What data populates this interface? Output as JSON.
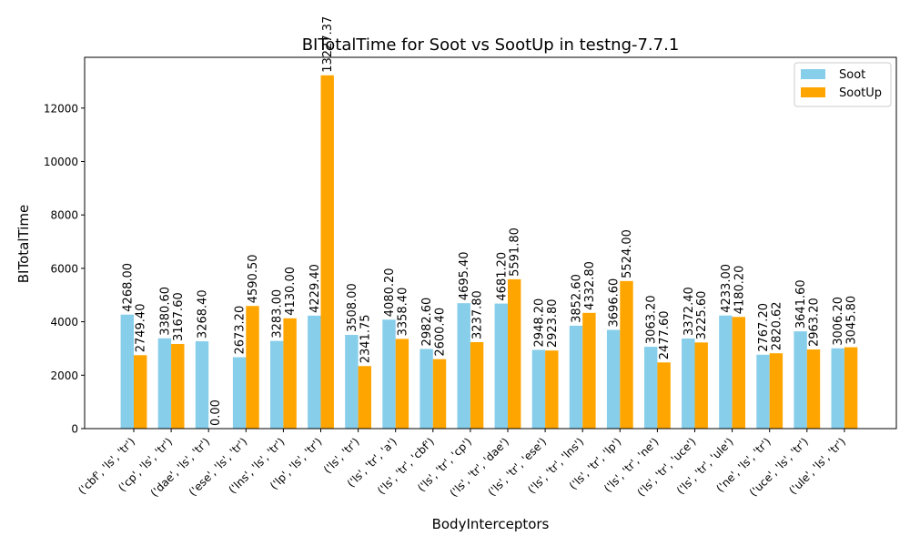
{
  "chart_data": {
    "type": "bar",
    "title": "BITotalTime for Soot vs SootUp in testng-7.7.1",
    "xlabel": "BodyInterceptors",
    "ylabel": "BITotalTime",
    "ylim": [
      0,
      13900
    ],
    "yticks": [
      0,
      2000,
      4000,
      6000,
      8000,
      10000,
      12000
    ],
    "legend_position": "top-right",
    "categories": [
      "('cbf', 'ls', 'tr')",
      "('cp', 'ls', 'tr')",
      "('dae', 'ls', 'tr')",
      "('ese', 'ls', 'tr')",
      "('lns', 'ls', 'tr')",
      "('lp', 'ls', 'tr')",
      "('ls', 'tr')",
      "('ls', 'tr', 'a')",
      "('ls', 'tr', 'cbf')",
      "('ls', 'tr', 'cp')",
      "('ls', 'tr', 'dae')",
      "('ls', 'tr', 'ese')",
      "('ls', 'tr', 'lns')",
      "('ls', 'tr', 'lp')",
      "('ls', 'tr', 'ne')",
      "('ls', 'tr', 'uce')",
      "('ls', 'tr', 'ule')",
      "('ne', 'ls', 'tr')",
      "('uce', 'ls', 'tr')",
      "('ule', 'ls', 'tr')"
    ],
    "series": [
      {
        "name": "Soot",
        "color": "#87ceeb",
        "values": [
          4268.0,
          3380.6,
          3268.4,
          2673.2,
          3283.0,
          4229.4,
          3508.0,
          4080.2,
          2982.6,
          4695.4,
          4681.2,
          2948.2,
          3852.6,
          3696.6,
          3063.2,
          3372.4,
          4233.0,
          2767.2,
          3641.6,
          3006.2
        ],
        "labels": [
          "4268.00",
          "3380.60",
          "3268.40",
          "2673.20",
          "3283.00",
          "4229.40",
          "3508.00",
          "4080.20",
          "2982.60",
          "4695.40",
          "4681.20",
          "2948.20",
          "3852.60",
          "3696.60",
          "3063.20",
          "3372.40",
          "4233.00",
          "2767.20",
          "3641.60",
          "3006.20"
        ]
      },
      {
        "name": "SootUp",
        "color": "#ffa500",
        "values": [
          2749.4,
          3167.6,
          0.0,
          4590.5,
          4130.0,
          13227.37,
          2341.75,
          3358.4,
          2600.4,
          3237.8,
          5591.8,
          2923.8,
          4332.8,
          5524.0,
          2477.6,
          3225.6,
          4180.2,
          2820.62,
          2963.2,
          3045.8
        ],
        "labels": [
          "2749.40",
          "3167.60",
          "0.00",
          "4590.50",
          "4130.00",
          "13227.37",
          "2341.75",
          "3358.40",
          "2600.40",
          "3237.80",
          "5591.80",
          "2923.80",
          "4332.80",
          "5524.00",
          "2477.60",
          "3225.60",
          "4180.20",
          "2820.62",
          "2963.20",
          "3045.80"
        ]
      }
    ]
  }
}
